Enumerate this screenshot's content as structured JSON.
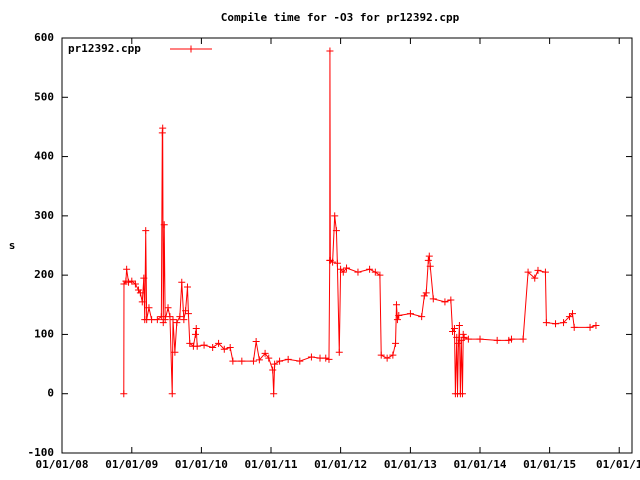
{
  "chart_data": {
    "type": "line",
    "title": "Compile time for -O3 for pr12392.cpp",
    "y_label": "s",
    "xlim": [
      "2008-01-01",
      "2016-03-08"
    ],
    "xticks": [
      {
        "value": "2008-01-01",
        "label": "01/01/08"
      },
      {
        "value": "2009-01-01",
        "label": "01/01/09"
      },
      {
        "value": "2010-01-01",
        "label": "01/01/10"
      },
      {
        "value": "2011-01-01",
        "label": "01/01/11"
      },
      {
        "value": "2012-01-01",
        "label": "01/01/12"
      },
      {
        "value": "2013-01-01",
        "label": "01/01/13"
      },
      {
        "value": "2014-01-01",
        "label": "01/01/14"
      },
      {
        "value": "2015-01-01",
        "label": "01/01/15"
      },
      {
        "value": "2016-01-01",
        "label": "01/01/1"
      }
    ],
    "ylim": [
      -100,
      600
    ],
    "yticks": [
      -100,
      0,
      100,
      200,
      300,
      400,
      500,
      600
    ],
    "legend": "top-left",
    "grid": false,
    "series": [
      {
        "name": "pr12392.cpp",
        "color": "#ff0000",
        "x": [
          "2008-11-20",
          "2008-11-21",
          "2008-12-01",
          "2008-12-05",
          "2008-12-15",
          "2009-01-01",
          "2009-01-20",
          "2009-02-05",
          "2009-02-15",
          "2009-02-25",
          "2009-03-05",
          "2009-03-10",
          "2009-03-15",
          "2009-03-20",
          "2009-04-01",
          "2009-04-15",
          "2009-05-15",
          "2009-06-05",
          "2009-06-10",
          "2009-06-12",
          "2009-06-15",
          "2009-06-20",
          "2009-06-25",
          "2009-07-10",
          "2009-07-20",
          "2009-08-01",
          "2009-08-05",
          "2009-08-15",
          "2009-08-25",
          "2009-09-10",
          "2009-09-20",
          "2009-10-01",
          "2009-10-10",
          "2009-10-20",
          "2009-10-25",
          "2009-11-01",
          "2009-11-20",
          "2009-12-01",
          "2009-12-05",
          "2009-12-10",
          "2010-01-15",
          "2010-03-01",
          "2010-04-01",
          "2010-05-01",
          "2010-06-01",
          "2010-06-15",
          "2010-08-01",
          "2010-10-01",
          "2010-10-15",
          "2010-11-01",
          "2010-12-01",
          "2010-12-20",
          "2011-01-10",
          "2011-01-15",
          "2011-01-20",
          "2011-02-15",
          "2011-04-01",
          "2011-06-01",
          "2011-08-01",
          "2011-09-15",
          "2011-10-15",
          "2011-11-01",
          "2011-11-05",
          "2011-11-06",
          "2011-11-08",
          "2011-11-20",
          "2011-12-01",
          "2011-12-10",
          "2011-12-15",
          "2011-12-25",
          "2012-01-01",
          "2012-01-15",
          "2012-02-01",
          "2012-04-01",
          "2012-06-01",
          "2012-07-01",
          "2012-07-25",
          "2012-08-01",
          "2012-09-01",
          "2012-10-01",
          "2012-10-15",
          "2012-10-20",
          "2012-10-25",
          "2012-11-01",
          "2013-01-01",
          "2013-03-01",
          "2013-03-15",
          "2013-03-25",
          "2013-04-05",
          "2013-04-10",
          "2013-04-15",
          "2013-05-01",
          "2013-07-01",
          "2013-08-01",
          "2013-08-10",
          "2013-08-20",
          "2013-08-25",
          "2013-09-01",
          "2013-09-05",
          "2013-09-10",
          "2013-09-15",
          "2013-09-20",
          "2013-09-25",
          "2013-10-01",
          "2013-10-05",
          "2013-10-10",
          "2013-11-01",
          "2014-01-01",
          "2014-04-01",
          "2014-06-01",
          "2014-06-15",
          "2014-08-15",
          "2014-09-10",
          "2014-10-15",
          "2014-11-01",
          "2014-12-10",
          "2014-12-15",
          "2015-02-01",
          "2015-03-15",
          "2015-04-15",
          "2015-05-01",
          "2015-05-10",
          "2015-08-01",
          "2015-09-01"
        ],
        "values": [
          0,
          185,
          190,
          210,
          188,
          190,
          185,
          175,
          170,
          155,
          195,
          125,
          275,
          125,
          145,
          125,
          125,
          130,
          440,
          448,
          120,
          285,
          125,
          145,
          130,
          0,
          125,
          70,
          120,
          130,
          188,
          125,
          140,
          180,
          135,
          85,
          80,
          100,
          110,
          80,
          82,
          78,
          85,
          75,
          78,
          55,
          55,
          55,
          88,
          57,
          68,
          60,
          40,
          0,
          50,
          55,
          58,
          55,
          62,
          60,
          60,
          58,
          225,
          578,
          225,
          222,
          300,
          275,
          220,
          70,
          210,
          205,
          212,
          205,
          210,
          205,
          200,
          65,
          60,
          65,
          85,
          150,
          125,
          132,
          135,
          130,
          165,
          170,
          225,
          232,
          215,
          160,
          155,
          158,
          105,
          110,
          0,
          95,
          0,
          85,
          115,
          0,
          90,
          0,
          100,
          95,
          92,
          92,
          90,
          90,
          92,
          92,
          205,
          195,
          208,
          205,
          120,
          118,
          120,
          130,
          135,
          112,
          112,
          115
        ]
      }
    ]
  }
}
